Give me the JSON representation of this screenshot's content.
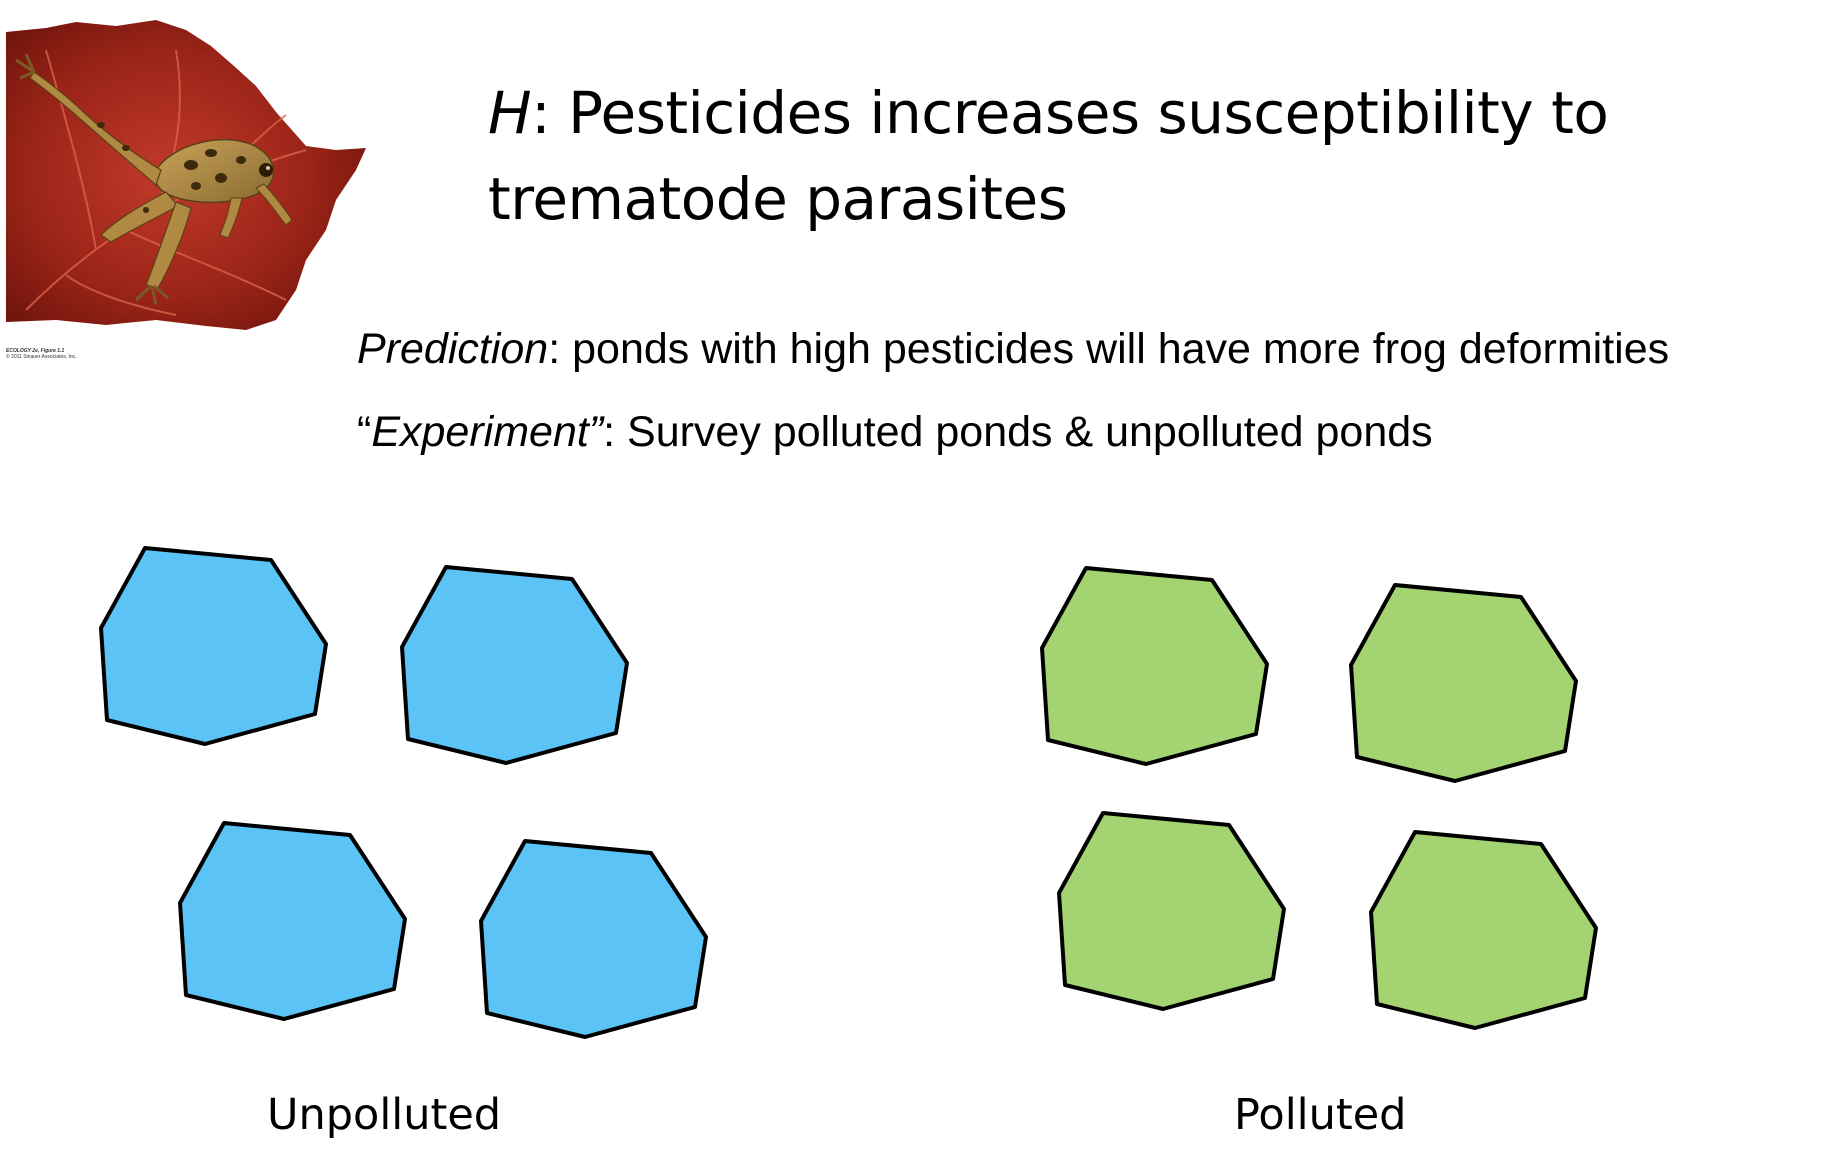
{
  "hypothesis": {
    "letter": "H",
    "text": ": Pesticides increases susceptibility to trematode parasites"
  },
  "prediction": {
    "lead": "Prediction",
    "text": ": ponds with high pesticides will have more frog deformities"
  },
  "experiment": {
    "open_quote": "“",
    "lead": "Experiment”",
    "text": ": Survey polluted ponds & unpolluted ponds"
  },
  "photo_credit": {
    "line1": "ECOLOGY 2e, Figure 1.1",
    "line2": "© 2011 Sinauer Associates, Inc."
  },
  "groups": [
    {
      "label": "Unpolluted",
      "color": "#5BC3F5",
      "pond_count": 4
    },
    {
      "label": "Polluted",
      "color": "#A4D371",
      "pond_count": 4
    }
  ],
  "icons": [
    "frog-on-leaf-photo",
    "pond-shape"
  ]
}
